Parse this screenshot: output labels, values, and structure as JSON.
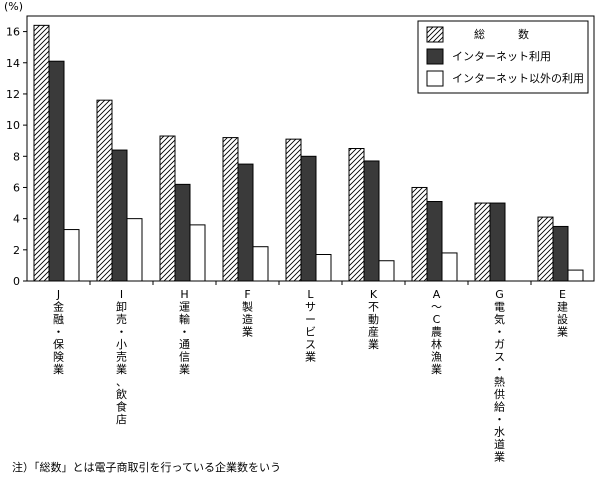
{
  "chart_data": {
    "type": "bar",
    "unit_label": "(%)",
    "ylim": [
      0,
      17
    ],
    "yticks": [
      0,
      2,
      4,
      6,
      8,
      10,
      12,
      14,
      16
    ],
    "grid": false,
    "legend_position": "top-right",
    "categories": [
      "J\n金\n融\n・\n保\n険\n業",
      "I\n卸\n売\n・\n小\n売\n業\n、\n飲\n食\n店",
      "H\n運\n輸\n・\n通\n信\n業",
      "F\n製\n造\n業",
      "L\nサ\nー\nビ\nス\n業",
      "K\n不\n動\n産\n業",
      "A\n〜\nC\n農\n林\n漁\n業",
      "G\n電\n気\n・\nガ\nス\n・\n熱\n供\n給\n・\n水\n道\n業",
      "E\n建\n設\n業"
    ],
    "series": [
      {
        "name": "総　　　数",
        "style": "hatched",
        "values": [
          16.4,
          11.6,
          9.3,
          9.2,
          9.1,
          8.5,
          6.0,
          5.0,
          4.1
        ]
      },
      {
        "name": "インターネット利用",
        "style": "dark",
        "values": [
          14.1,
          8.4,
          6.2,
          7.5,
          8.0,
          7.7,
          5.1,
          5.0,
          3.5
        ]
      },
      {
        "name": "インターネット以外の利用",
        "style": "white",
        "values": [
          3.3,
          4.0,
          3.6,
          2.2,
          1.7,
          1.3,
          1.8,
          0,
          0.7
        ]
      }
    ],
    "colors": {
      "dark": "#3a3a3a",
      "white": "#ffffff",
      "hatch": "#000000"
    }
  },
  "footnote": "注）「総数」とは電子商取引を行っている企業数をいう"
}
